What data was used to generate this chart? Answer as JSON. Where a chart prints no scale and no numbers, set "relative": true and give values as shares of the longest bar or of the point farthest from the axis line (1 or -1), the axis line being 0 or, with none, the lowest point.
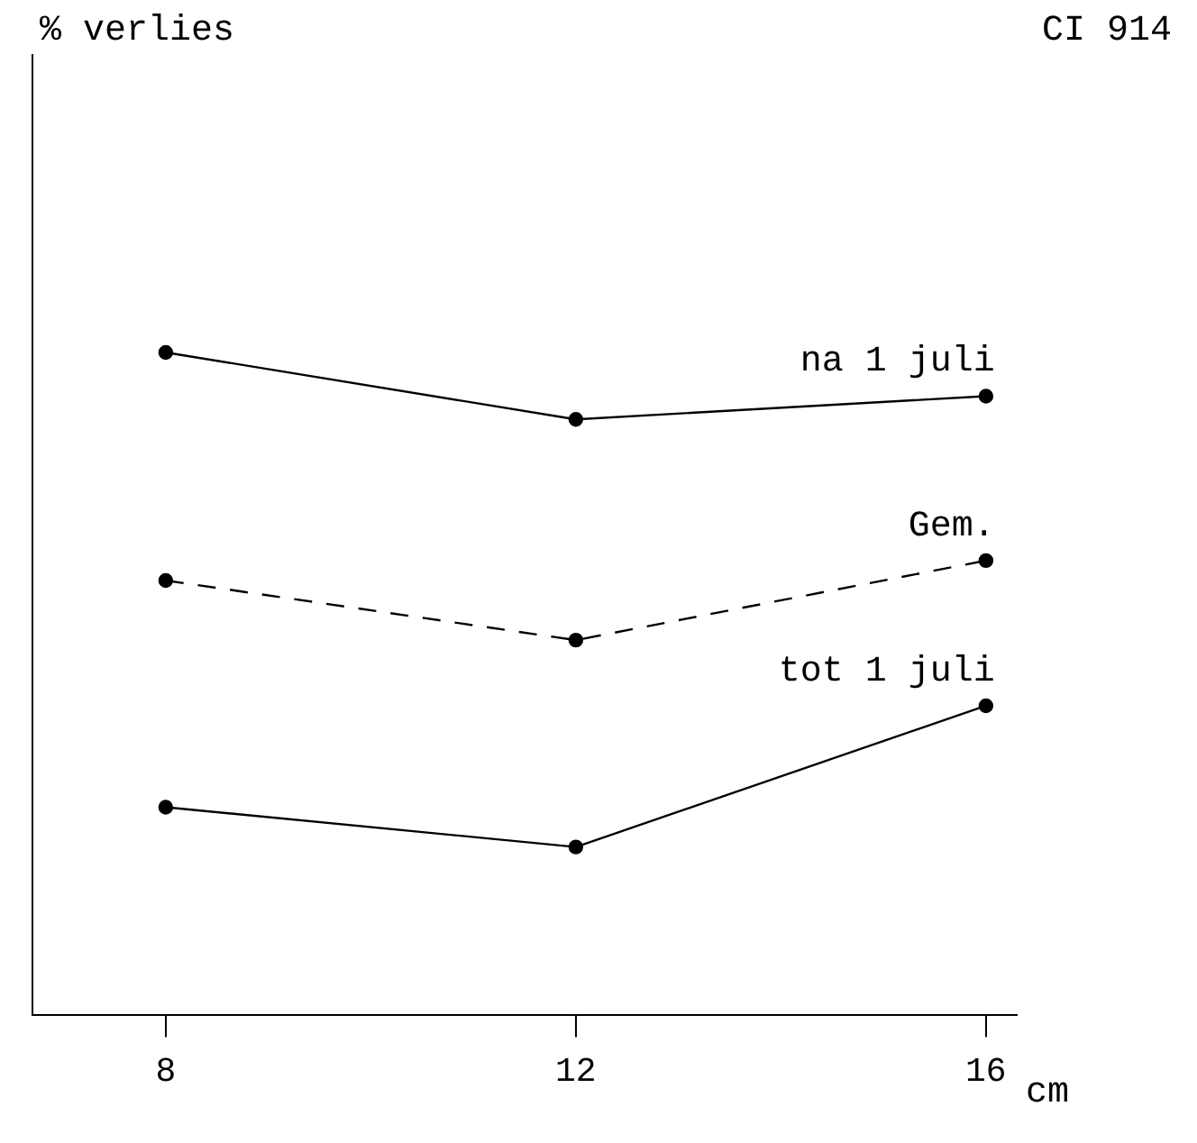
{
  "chart_data": {
    "type": "line",
    "title": "CI 914",
    "annotations": [
      "% verlies"
    ],
    "xlabel": "cm",
    "relative": true,
    "x": [
      8,
      12,
      16
    ],
    "xlim": [
      6.7,
      16.3
    ],
    "xticks": [
      8,
      12,
      16
    ],
    "series": [
      {
        "name": "na 1 juli",
        "color": "#000000",
        "values": [
          1,
          0.899,
          0.934
        ],
        "line_style": "solid"
      },
      {
        "name": "Gem.",
        "color": "#000000",
        "values": [
          0.656,
          0.566,
          0.686
        ],
        "line_style": "dashed"
      },
      {
        "name": "tot 1 juli",
        "color": "#000000",
        "values": [
          0.314,
          0.254,
          0.467
        ],
        "line_style": "solid"
      }
    ],
    "marker": "circle",
    "grid": false,
    "legend": false
  }
}
